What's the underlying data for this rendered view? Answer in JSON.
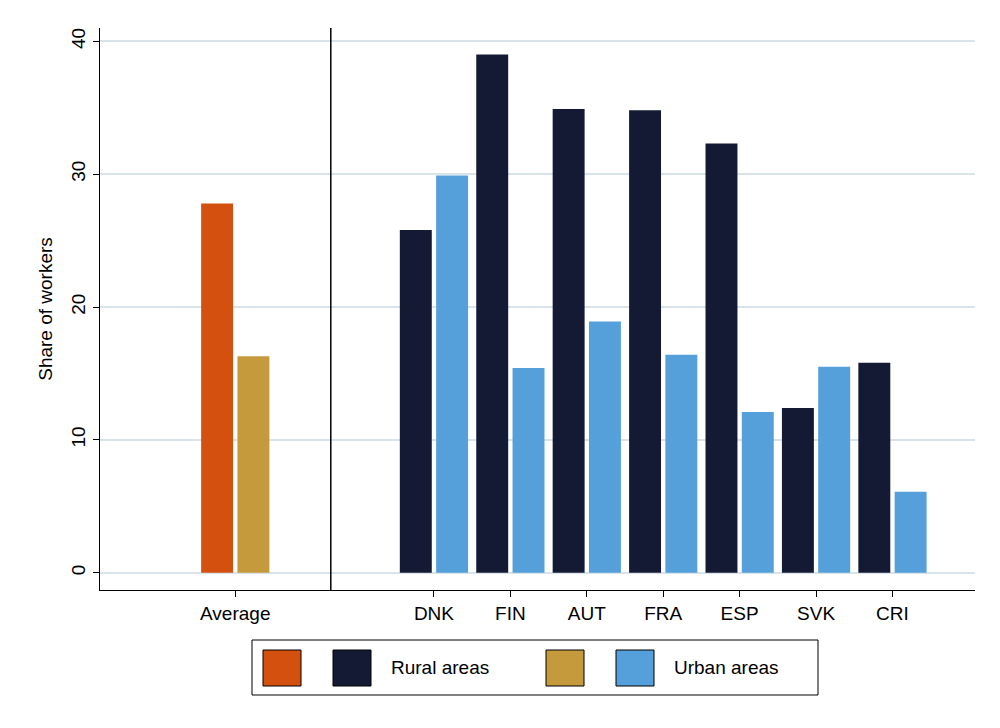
{
  "chart_data": {
    "type": "bar",
    "categories": [
      "Average",
      "DNK",
      "FIN",
      "AUT",
      "FRA",
      "ESP",
      "SVK",
      "CRI"
    ],
    "series": [
      {
        "name": "Rural areas",
        "values": [
          27.8,
          25.8,
          39,
          34.9,
          34.8,
          32.3,
          12.4,
          15.8
        ],
        "colors": [
          "#d4500f",
          "#141a33",
          "#141a33",
          "#141a33",
          "#141a33",
          "#141a33",
          "#141a33",
          "#141a33"
        ]
      },
      {
        "name": "Urban areas",
        "values": [
          16.3,
          29.9,
          15.4,
          18.9,
          16.4,
          12.1,
          15.5,
          6.1
        ],
        "colors": [
          "#c49a3c",
          "#559fdb",
          "#559fdb",
          "#559fdb",
          "#559fdb",
          "#559fdb",
          "#559fdb",
          "#559fdb"
        ]
      }
    ],
    "ylabel": "Share of workers",
    "ylim": [
      -1.3,
      41
    ],
    "yticks": [
      0,
      10,
      20,
      30,
      40
    ],
    "grid": true
  }
}
